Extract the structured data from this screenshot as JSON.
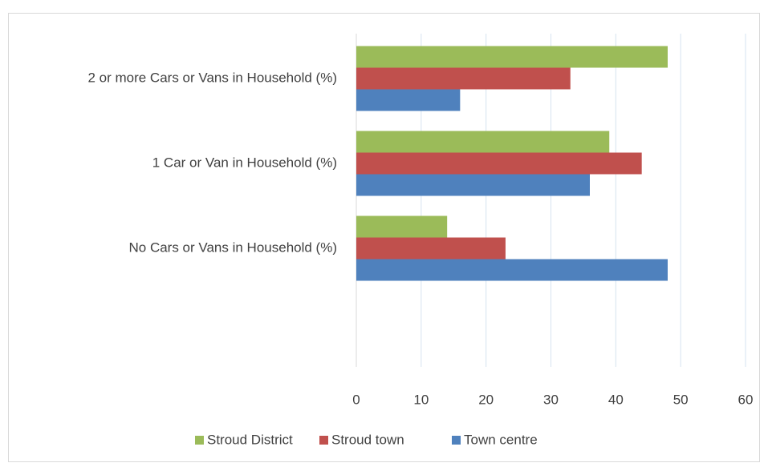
{
  "chart_data": {
    "type": "hbar",
    "categories": [
      null,
      "No Cars or Vans in Household (%)",
      "1 Car or Van in Household (%)",
      "2 or more Cars or Vans in Household (%)"
    ],
    "series": [
      {
        "name": "Town centre",
        "color": "#4f81bd",
        "values": [
          null,
          48,
          36,
          16
        ]
      },
      {
        "name": "Stroud town",
        "color": "#c0504d",
        "values": [
          null,
          23,
          44,
          33
        ]
      },
      {
        "name": "Stroud District",
        "color": "#9bbb59",
        "values": [
          null,
          14,
          39,
          48
        ]
      }
    ],
    "xlim": [
      0,
      60
    ],
    "xticks": [
      0,
      10,
      20,
      30,
      40,
      50,
      60
    ],
    "grid": true,
    "legend": "bottom"
  }
}
